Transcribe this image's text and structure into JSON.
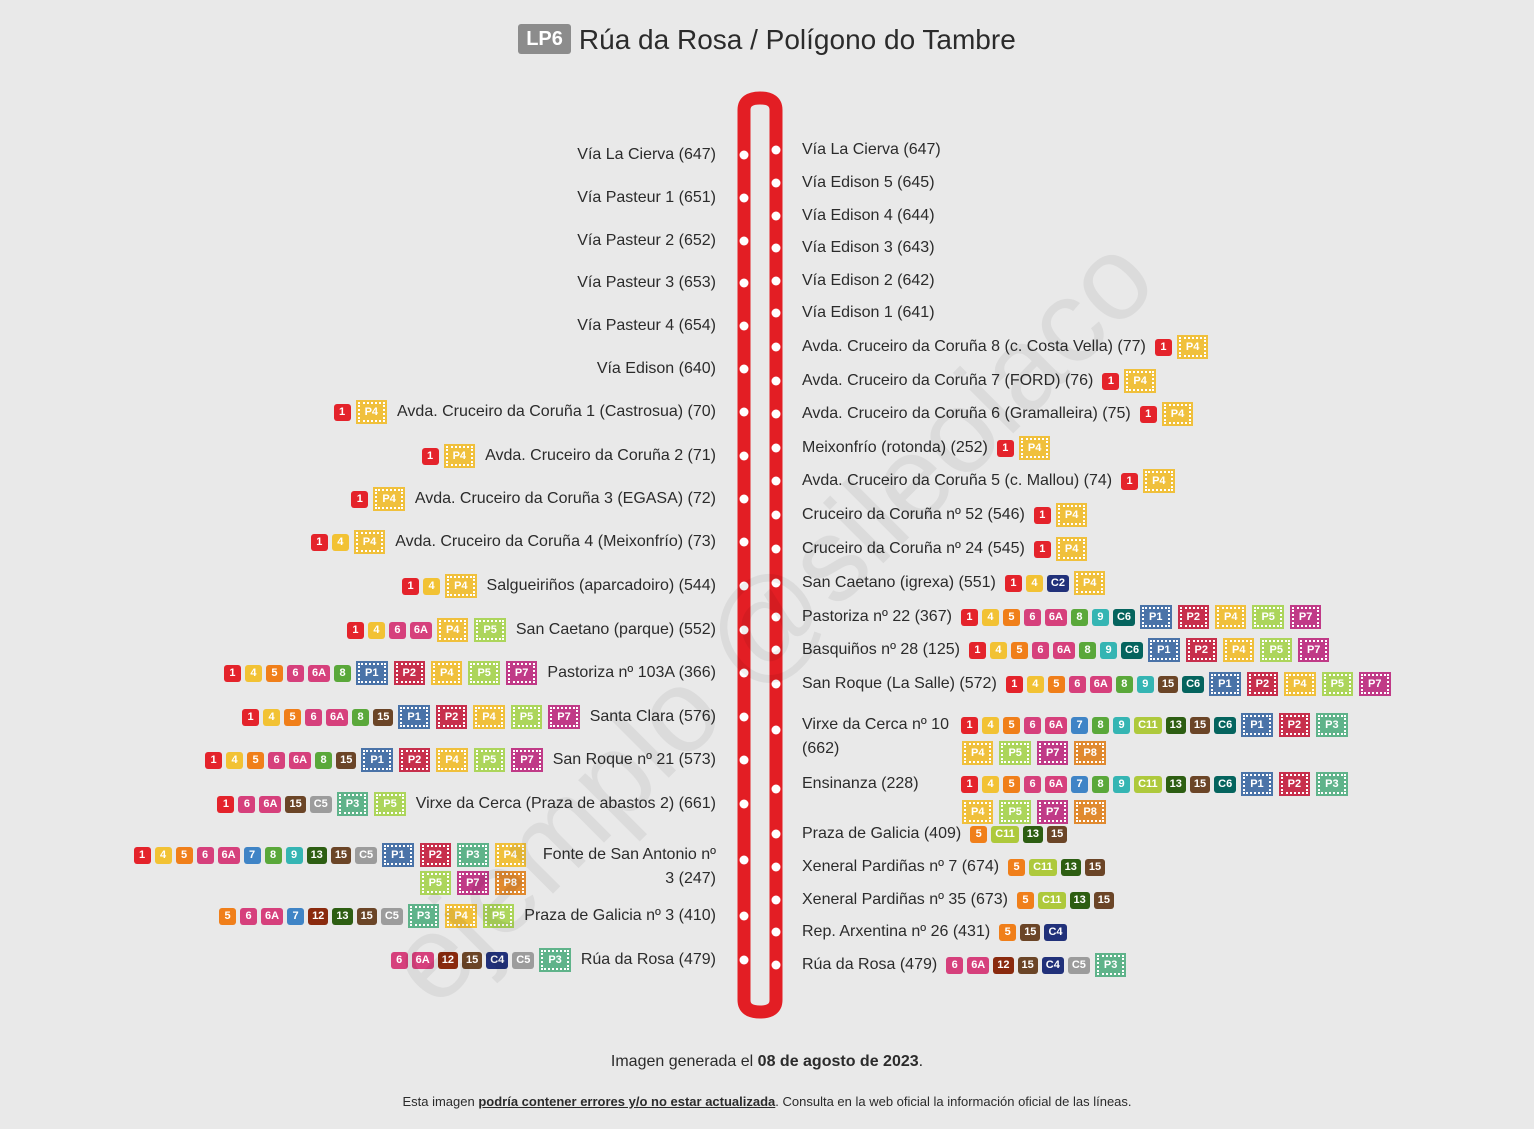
{
  "header": {
    "line_code": "LP6",
    "title": "Rúa da Rosa / Polígono do Tambre"
  },
  "watermark": "ejemplo @sileoiaco",
  "footer": {
    "generated_prefix": "Imagen generada el ",
    "generated_date": "08 de agosto de 2023",
    "generated_suffix": ".",
    "note_prefix": "Esta imagen ",
    "note_emphasis": "podría contener errores y/o no estar actualizada",
    "note_suffix": ". Consulta en la web oficial la información oficial de las líneas."
  },
  "route_colors": {
    "1": "#e4232b",
    "4": "#f2c234",
    "5": "#f07f1a",
    "6": "#d6407c",
    "6A": "#d6407c",
    "7": "#3f84c6",
    "8": "#5aa83a",
    "9": "#35b5b3",
    "12": "#8a2a0e",
    "13": "#2d5e12",
    "15": "#6b4527",
    "C2": "#21317a",
    "C4": "#21317a",
    "C5": "#9c9c9c",
    "C6": "#05645e",
    "C11": "#aec93c",
    "P1": "#4a73a8",
    "P2": "#c72f4c",
    "P3": "#5fb38a",
    "P4": "#f0c03c",
    "P5": "#acd55b",
    "P7": "#c03a87",
    "P8": "#e08a30"
  },
  "track_color": "#e31e24",
  "stops_left": [
    {
      "name": "Vía La Cierva (647)",
      "routes": []
    },
    {
      "name": "Vía Pasteur 1 (651)",
      "routes": []
    },
    {
      "name": "Vía Pasteur 2 (652)",
      "routes": []
    },
    {
      "name": "Vía Pasteur 3 (653)",
      "routes": []
    },
    {
      "name": "Vía Pasteur 4 (654)",
      "routes": []
    },
    {
      "name": "Vía Edison (640)",
      "routes": []
    },
    {
      "name": "Avda. Cruceiro da Coruña 1 (Castrosua) (70)",
      "routes": [
        "1",
        "P4"
      ]
    },
    {
      "name": "Avda. Cruceiro da Coruña 2 (71)",
      "routes": [
        "1",
        "P4"
      ]
    },
    {
      "name": "Avda. Cruceiro da Coruña 3 (EGASA) (72)",
      "routes": [
        "1",
        "P4"
      ]
    },
    {
      "name": "Avda. Cruceiro da Coruña 4 (Meixonfrío) (73)",
      "routes": [
        "1",
        "4",
        "P4"
      ]
    },
    {
      "name": "Salgueiriños (aparcadoiro) (544)",
      "routes": [
        "1",
        "4",
        "P4"
      ]
    },
    {
      "name": "San Caetano (parque) (552)",
      "routes": [
        "1",
        "4",
        "6",
        "6A",
        "P4",
        "P5"
      ]
    },
    {
      "name": "Pastoriza nº 103A (366)",
      "routes": [
        "1",
        "4",
        "5",
        "6",
        "6A",
        "8",
        "P1",
        "P2",
        "P4",
        "P5",
        "P7"
      ]
    },
    {
      "name": "Santa Clara (576)",
      "routes": [
        "1",
        "4",
        "5",
        "6",
        "6A",
        "8",
        "15",
        "P1",
        "P2",
        "P4",
        "P5",
        "P7"
      ]
    },
    {
      "name": "San Roque nº 21 (573)",
      "routes": [
        "1",
        "4",
        "5",
        "6",
        "6A",
        "8",
        "15",
        "P1",
        "P2",
        "P4",
        "P5",
        "P7"
      ]
    },
    {
      "name": "Virxe da Cerca (Praza de abastos 2) (661)",
      "routes": [
        "1",
        "6",
        "6A",
        "15",
        "C5",
        "P3",
        "P5"
      ]
    },
    {
      "name": "Fonte de San Antonio nº 3 (247)",
      "routes": [
        "1",
        "4",
        "5",
        "6",
        "6A",
        "7",
        "8",
        "9",
        "13",
        "15",
        "C5",
        "P1",
        "P2",
        "P3",
        "P4",
        "P5",
        "P7",
        "P8"
      ]
    },
    {
      "name": "Praza de Galicia nº 3 (410)",
      "routes": [
        "5",
        "6",
        "6A",
        "7",
        "12",
        "13",
        "15",
        "C5",
        "P3",
        "P4",
        "P5"
      ]
    },
    {
      "name": "Rúa da Rosa (479)",
      "routes": [
        "6",
        "6A",
        "12",
        "15",
        "C4",
        "C5",
        "P3"
      ]
    }
  ],
  "stops_right": [
    {
      "name": "Vía La Cierva (647)",
      "routes": []
    },
    {
      "name": "Vía Edison 5 (645)",
      "routes": []
    },
    {
      "name": "Vía Edison 4 (644)",
      "routes": []
    },
    {
      "name": "Vía Edison 3 (643)",
      "routes": []
    },
    {
      "name": "Vía Edison 2 (642)",
      "routes": []
    },
    {
      "name": "Vía Edison 1 (641)",
      "routes": []
    },
    {
      "name": "Avda. Cruceiro da Coruña 8 (c. Costa Vella) (77)",
      "routes": [
        "1",
        "P4"
      ]
    },
    {
      "name": "Avda. Cruceiro da Coruña 7 (FORD) (76)",
      "routes": [
        "1",
        "P4"
      ]
    },
    {
      "name": "Avda. Cruceiro da Coruña 6 (Gramalleira) (75)",
      "routes": [
        "1",
        "P4"
      ]
    },
    {
      "name": "Meixonfrío (rotonda) (252)",
      "routes": [
        "1",
        "P4"
      ]
    },
    {
      "name": "Avda. Cruceiro da Coruña 5 (c. Mallou) (74)",
      "routes": [
        "1",
        "P4"
      ]
    },
    {
      "name": "Cruceiro da Coruña nº 52 (546)",
      "routes": [
        "1",
        "P4"
      ]
    },
    {
      "name": "Cruceiro da Coruña nº 24 (545)",
      "routes": [
        "1",
        "P4"
      ]
    },
    {
      "name": "San Caetano (igrexa) (551)",
      "routes": [
        "1",
        "4",
        "C2",
        "P4"
      ]
    },
    {
      "name": "Pastoriza nº 22 (367)",
      "routes": [
        "1",
        "4",
        "5",
        "6",
        "6A",
        "8",
        "9",
        "C6",
        "P1",
        "P2",
        "P4",
        "P5",
        "P7"
      ]
    },
    {
      "name": "Basquiños nº 28 (125)",
      "routes": [
        "1",
        "4",
        "5",
        "6",
        "6A",
        "8",
        "9",
        "C6",
        "P1",
        "P2",
        "P4",
        "P5",
        "P7"
      ]
    },
    {
      "name": "San Roque (La Salle) (572)",
      "routes": [
        "1",
        "4",
        "5",
        "6",
        "6A",
        "8",
        "9",
        "15",
        "C6",
        "P1",
        "P2",
        "P4",
        "P5",
        "P7"
      ]
    },
    {
      "name": "Virxe da Cerca nº 10 (662)",
      "routes": [
        "1",
        "4",
        "5",
        "6",
        "6A",
        "7",
        "8",
        "9",
        "C11",
        "13",
        "15",
        "C6",
        "P1",
        "P2",
        "P3",
        "P4",
        "P5",
        "P7",
        "P8"
      ]
    },
    {
      "name": "Ensinanza (228)",
      "routes": [
        "1",
        "4",
        "5",
        "6",
        "6A",
        "7",
        "8",
        "9",
        "C11",
        "13",
        "15",
        "C6",
        "P1",
        "P2",
        "P3",
        "P4",
        "P5",
        "P7",
        "P8"
      ]
    },
    {
      "name": "Praza de Galicia (409)",
      "routes": [
        "5",
        "C11",
        "13",
        "15"
      ]
    },
    {
      "name": "Xeneral Pardiñas nº 7 (674)",
      "routes": [
        "5",
        "C11",
        "13",
        "15"
      ]
    },
    {
      "name": "Xeneral Pardiñas nº 35 (673)",
      "routes": [
        "5",
        "C11",
        "13",
        "15"
      ]
    },
    {
      "name": "Rep. Arxentina nº 26 (431)",
      "routes": [
        "5",
        "15",
        "C4"
      ]
    },
    {
      "name": "Rúa da Rosa (479)",
      "routes": [
        "6",
        "6A",
        "12",
        "15",
        "C4",
        "C5",
        "P3"
      ]
    }
  ]
}
